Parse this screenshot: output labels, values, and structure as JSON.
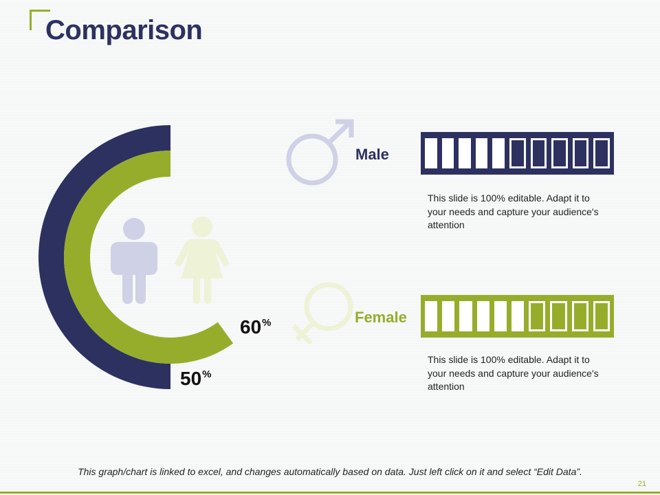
{
  "slide": {
    "title": "Comparison",
    "page_number": "21",
    "footnote": "This graph/chart is linked to excel, and changes automatically based on data. Just left click on it and select “Edit Data”."
  },
  "colors": {
    "navy": "#2d3160",
    "green": "#96ad2c",
    "light_navy": "#cfd1e6",
    "light_green": "#eef2d6"
  },
  "icons": [
    "male-symbol-icon",
    "female-symbol-icon",
    "man-figure-icon",
    "woman-figure-icon"
  ],
  "chart_data": [
    {
      "type": "donut",
      "title": "",
      "series": [
        {
          "values": [
            50
          ],
          "label": "50",
          "color": "#2d3160"
        },
        {
          "values": [
            60
          ],
          "label": "60",
          "color": "#96ad2c"
        }
      ],
      "unit": "%"
    },
    {
      "type": "bar",
      "categories": [
        "Male",
        "Female"
      ],
      "values": [
        5,
        6
      ],
      "max": 10,
      "colors": [
        "#2d3160",
        "#96ad2c"
      ]
    }
  ],
  "male": {
    "label": "Male",
    "description": "This slide is 100% editable. Adapt it to your needs and capture your audience's attention"
  },
  "female": {
    "label": "Female",
    "description": "This slide is 100% editable. Adapt it to your needs and capture your audience's attention"
  }
}
